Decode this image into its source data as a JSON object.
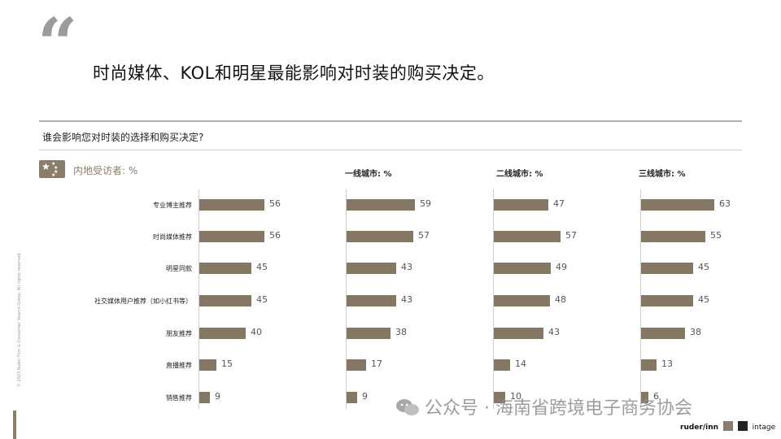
{
  "slide": {
    "quote_mark": "“",
    "headline": "时尚媒体、KOL和明星最能影响对时装的购买决定。",
    "question": "谁会影响您对时装的选择和购买决定?",
    "sample_label": "内地受访者: %"
  },
  "side_note": "© 2023 Ruder Finn & Consumer Search Group. All rights reserved.",
  "watermark": "公众号 · 海南省跨境电子商务协会",
  "logos": {
    "ruderfinn": "ruder/inn",
    "intage": "intage"
  },
  "colors": {
    "bar": "#847764",
    "accent": "#8a7d6a"
  },
  "chart_data": [
    {
      "type": "bar",
      "title": "",
      "categories": [
        "专业博主推荐",
        "时尚媒体推荐",
        "明星同款",
        "社交媒体用户推荐（如小红书等）",
        "朋友推荐",
        "直播推荐",
        "销售推荐"
      ],
      "values": [
        56,
        56,
        45,
        45,
        40,
        15,
        9
      ],
      "xlim": [
        0,
        100
      ]
    },
    {
      "type": "bar",
      "title": "一线城市: %",
      "categories": [
        "专业博主推荐",
        "时尚媒体推荐",
        "明星同款",
        "社交媒体用户推荐（如小红书等）",
        "朋友推荐",
        "直播推荐",
        "销售推荐"
      ],
      "values": [
        59,
        57,
        43,
        43,
        38,
        17,
        9
      ],
      "xlim": [
        0,
        100
      ]
    },
    {
      "type": "bar",
      "title": "二线城市: %",
      "categories": [
        "专业博主推荐",
        "时尚媒体推荐",
        "明星同款",
        "社交媒体用户推荐（如小红书等）",
        "朋友推荐",
        "直播推荐",
        "销售推荐"
      ],
      "values": [
        47,
        57,
        49,
        48,
        43,
        14,
        10
      ],
      "xlim": [
        0,
        100
      ]
    },
    {
      "type": "bar",
      "title": "三线城市: %",
      "categories": [
        "专业博主推荐",
        "时尚媒体推荐",
        "明星同款",
        "社交媒体用户推荐（如小红书等）",
        "朋友推荐",
        "直播推荐",
        "销售推荐"
      ],
      "values": [
        63,
        55,
        45,
        45,
        38,
        13,
        6
      ],
      "xlim": [
        0,
        100
      ]
    }
  ]
}
